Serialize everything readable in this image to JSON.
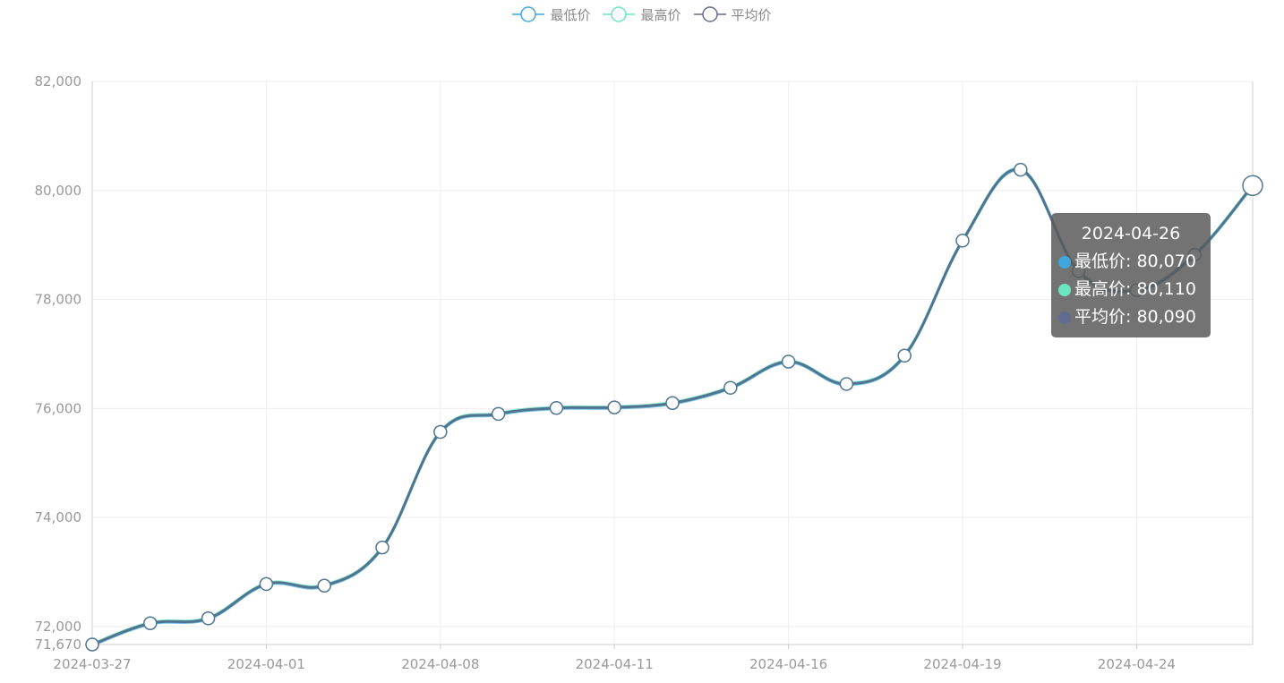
{
  "colors": {
    "low": "#3fa7dc",
    "high": "#6be6c1",
    "avg": "#626c91",
    "line": "#4f7590",
    "tooltip_bg": "#5a5a5a"
  },
  "chart_data": {
    "type": "line",
    "smooth": true,
    "grid": true,
    "legend_position": "top-center",
    "x": [
      "2024-03-27",
      "2024-03-28",
      "2024-03-29",
      "2024-04-01",
      "2024-04-02",
      "2024-04-03",
      "2024-04-08",
      "2024-04-09",
      "2024-04-10",
      "2024-04-11",
      "2024-04-12",
      "2024-04-15",
      "2024-04-16",
      "2024-04-17",
      "2024-04-18",
      "2024-04-19",
      "2024-04-22",
      "2024-04-23",
      "2024-04-24",
      "2024-04-25",
      "2024-04-26"
    ],
    "xticks": [
      "2024-03-27",
      "2024-04-01",
      "2024-04-08",
      "2024-04-11",
      "2024-04-16",
      "2024-04-19",
      "2024-04-24"
    ],
    "ylim": [
      71670,
      82000
    ],
    "yticks": [
      72000,
      74000,
      76000,
      78000,
      80000,
      82000
    ],
    "ytick_labels": [
      "72,000",
      "74,000",
      "76,000",
      "78,000",
      "80,000",
      "82,000"
    ],
    "ymin_label": "71,670",
    "series": [
      {
        "name": "最低价",
        "values": [
          71650,
          72040,
          72130,
          72760,
          72730,
          73430,
          75550,
          75880,
          75990,
          76000,
          76080,
          76360,
          76840,
          76430,
          76950,
          79060,
          80360,
          78500,
          78150,
          78800,
          80070
        ]
      },
      {
        "name": "最高价",
        "values": [
          71690,
          72080,
          72170,
          72800,
          72770,
          73470,
          75590,
          75920,
          76030,
          76040,
          76120,
          76400,
          76880,
          76470,
          76990,
          79100,
          80400,
          78540,
          78190,
          78840,
          80110
        ]
      },
      {
        "name": "平均价",
        "values": [
          71670,
          72060,
          72150,
          72780,
          72750,
          73450,
          75570,
          75900,
          76010,
          76020,
          76100,
          76380,
          76860,
          76450,
          76970,
          79080,
          80380,
          78520,
          78170,
          78820,
          80090
        ]
      }
    ]
  },
  "tooltip": {
    "date": "2024-04-26",
    "rows": [
      {
        "label": "最低价: 80,070"
      },
      {
        "label": "最高价: 80,110"
      },
      {
        "label": "平均价: 80,090"
      }
    ]
  }
}
